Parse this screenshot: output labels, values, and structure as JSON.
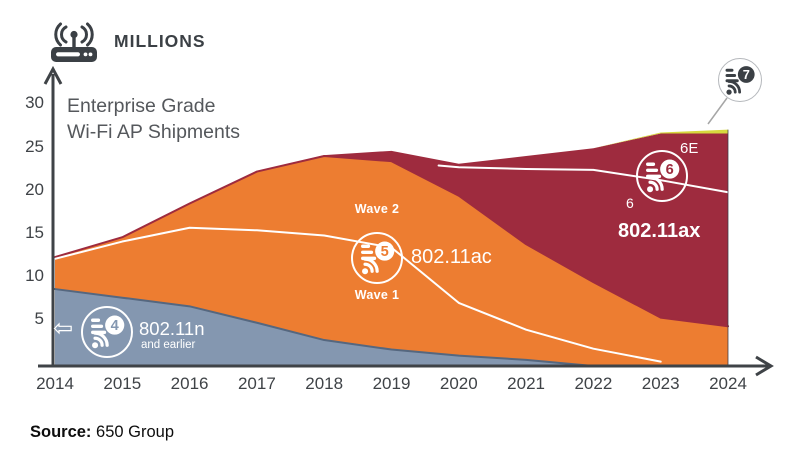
{
  "header": {
    "units_label_note": "axis unit shown top-left"
  },
  "source": {
    "prefix": "Source:",
    "text": " 650 Group"
  },
  "annotations": {
    "left_arrow": "⇦"
  },
  "colors": {
    "blue": "#8497B0",
    "blue_edge": "#55677F",
    "orange": "#ED7D31",
    "red": "#9E2B3E",
    "yellow": "#D6D93E",
    "axis": "#3F4347",
    "pointer": "#A6A6A6",
    "badge7_border": "#B5B8BC",
    "icon_dark": "#3B4045",
    "white": "#FFFFFF"
  },
  "chart_data": {
    "type": "area",
    "stacked": true,
    "title": "Enterprise Grade Wi-Fi AP Shipments",
    "title_lines": [
      "Enterprise Grade",
      "Wi-Fi AP Shipments"
    ],
    "ylabel": "MILLIONS",
    "xlabel": "",
    "x": [
      2014,
      2015,
      2016,
      2017,
      2018,
      2019,
      2020,
      2021,
      2022,
      2023,
      2024
    ],
    "ylim": [
      0,
      32
    ],
    "yticks": [
      5,
      10,
      15,
      20,
      25,
      30
    ],
    "grid": false,
    "legend": "in-chart annotations",
    "series": [
      {
        "name": "802.11n and earlier",
        "label": "802.11n",
        "sublabel": "and earlier",
        "wifi_badge": "4",
        "color": "#8497B0",
        "values": [
          8.5,
          7.5,
          6.5,
          4.6,
          2.6,
          1.5,
          0.8,
          0.3,
          0,
          0,
          0
        ]
      },
      {
        "name": "802.11ac",
        "wifi_badge": "5",
        "color": "#ED7D31",
        "values": [
          3.7,
          7.0,
          11.9,
          17.5,
          21.3,
          21.8,
          18.5,
          13.4,
          9.3,
          5.2,
          4.2
        ],
        "sub_split": {
          "label_upper": "Wave 2",
          "label_lower": "Wave 1",
          "boundary_points": [
            [
              2014,
              12.0
            ],
            [
              2015,
              14.0
            ],
            [
              2016,
              15.6
            ],
            [
              2017,
              15.3
            ],
            [
              2018,
              14.7
            ],
            [
              2019,
              13.3
            ],
            [
              2020,
              6.9
            ],
            [
              2021,
              3.8
            ],
            [
              2022,
              1.6
            ],
            [
              2023,
              0.1
            ]
          ]
        }
      },
      {
        "name": "802.11ax",
        "wifi_badge": "6",
        "color": "#9E2B3E",
        "values": [
          0,
          0,
          0,
          0,
          0.1,
          1.2,
          3.7,
          10.2,
          15.5,
          21.3,
          22.3
        ],
        "sub_split": {
          "label_upper": "6E",
          "label_lower": "6",
          "boundary_points": [
            [
              2019.7,
              22.8
            ],
            [
              2020,
              22.6
            ],
            [
              2021,
              22.4
            ],
            [
              2022,
              22.3
            ],
            [
              2023,
              21.1
            ],
            [
              2024,
              19.7
            ]
          ]
        }
      },
      {
        "name": "Wi-Fi 7",
        "wifi_badge": "7",
        "color": "#D6D93E",
        "values": [
          0,
          0,
          0,
          0,
          0,
          0,
          0,
          0,
          0,
          0.12,
          0.45
        ]
      }
    ]
  }
}
